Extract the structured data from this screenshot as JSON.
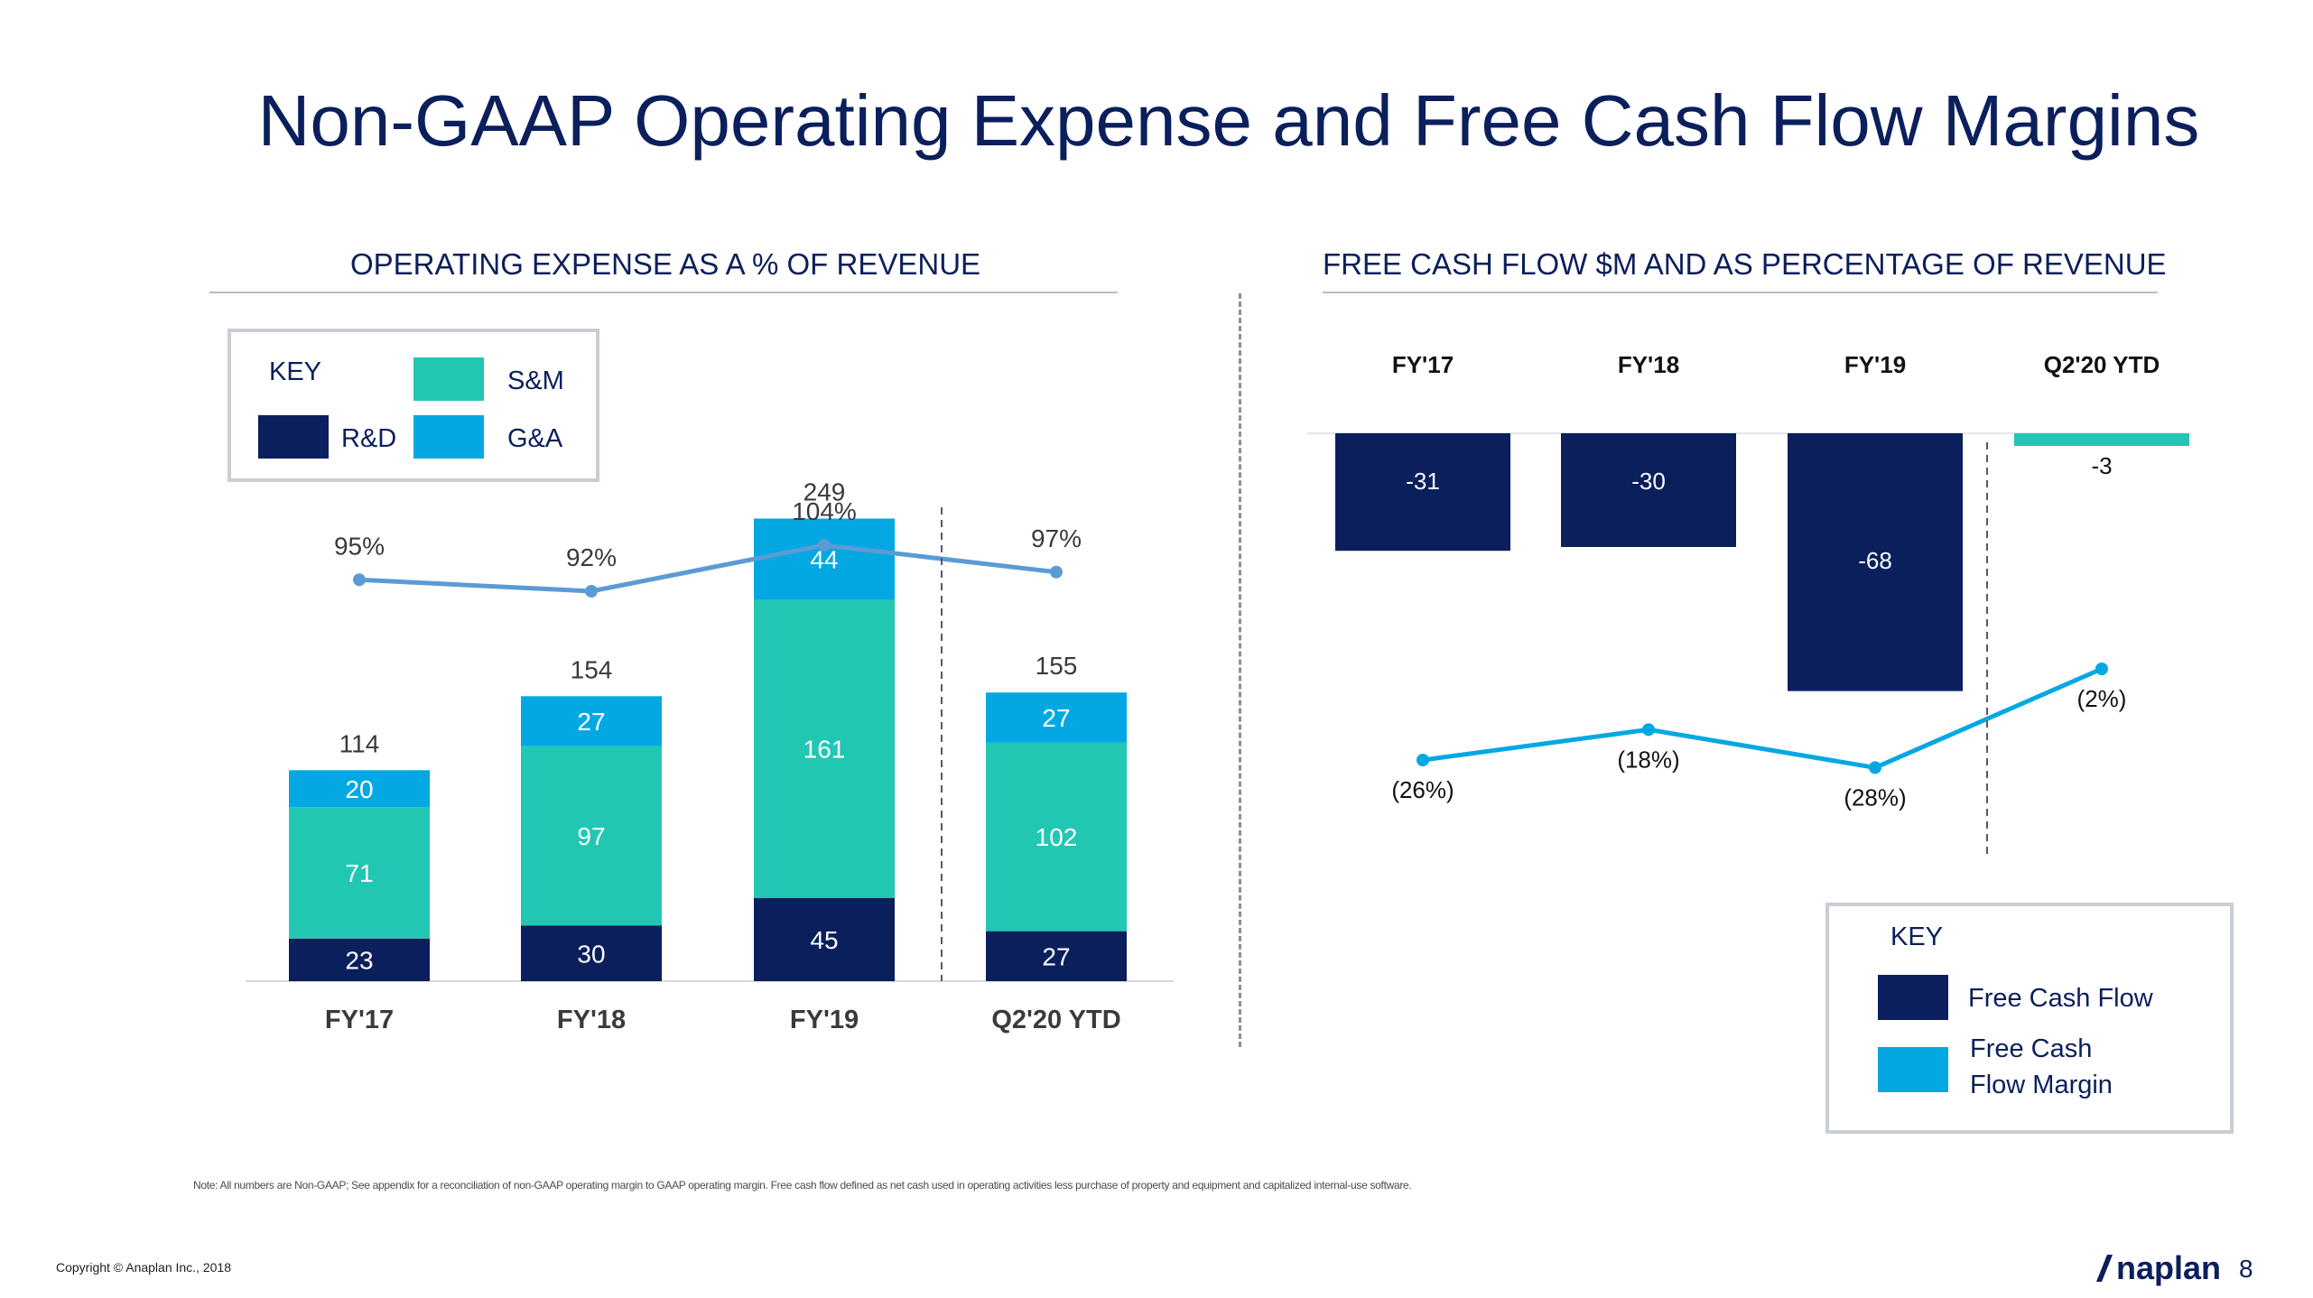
{
  "title": "Non-GAAP Operating Expense and Free Cash Flow Margins",
  "colors": {
    "navy": "#0b1f5c",
    "teal": "#22c7b3",
    "sky": "#03a8e2",
    "line_blue": "#5b9bd5",
    "fcf_line": "#03a8e2",
    "gray": "#b7bcc6"
  },
  "left_key": {
    "title": "KEY",
    "items": [
      {
        "label": "S&M",
        "color": "#22c7b3"
      },
      {
        "label": "R&D",
        "color": "#0b1f5c"
      },
      {
        "label": "G&A",
        "color": "#03a8e2"
      }
    ]
  },
  "right_key": {
    "title": "KEY",
    "items": [
      {
        "label": "Free Cash Flow",
        "color": "#0b1f5c"
      },
      {
        "label_line1": "Free Cash",
        "label_line2": "Flow Margin",
        "color": "#03a8e2"
      }
    ]
  },
  "chart_data": [
    {
      "type": "bar",
      "subtype": "stacked-bar-with-line",
      "title": "OPERATING EXPENSE AS A  % OF REVENUE",
      "categories": [
        "FY'17",
        "FY'18",
        "FY'19",
        "Q2'20 YTD"
      ],
      "series": [
        {
          "name": "R&D",
          "values": [
            23,
            30,
            45,
            27
          ],
          "labels": [
            "23",
            "30",
            "45",
            "27"
          ]
        },
        {
          "name": "S&M",
          "values": [
            71,
            97,
            161,
            102
          ],
          "labels": [
            "71",
            "97",
            "161",
            "102"
          ]
        },
        {
          "name": "G&A",
          "values": [
            20,
            27,
            44,
            27
          ],
          "labels": [
            "20",
            "27",
            "44",
            "27"
          ]
        }
      ],
      "totals": [
        114,
        154,
        249,
        155
      ],
      "total_labels": [
        "114",
        "154",
        "249",
        "155"
      ],
      "line": {
        "name": "Operating expense as % of revenue",
        "values": [
          95,
          92,
          104,
          97
        ],
        "labels": [
          "95%",
          "92%",
          "104%",
          "97%"
        ],
        "ylim": [
          60,
          140
        ]
      },
      "ylim": [
        0,
        250
      ],
      "divider_before": "Q2'20 YTD"
    },
    {
      "type": "bar",
      "subtype": "negative-bar-with-line",
      "title": "FREE CASH FLOW $M AND AS PERCENTAGE OF REVENUE",
      "categories": [
        "FY'17",
        "FY'18",
        "FY'19",
        "Q2'20 YTD"
      ],
      "series": [
        {
          "name": "Free Cash Flow",
          "values": [
            -31,
            -30,
            -68,
            -3
          ],
          "labels": [
            "-31",
            "-30",
            "-68",
            "-3"
          ]
        }
      ],
      "line": {
        "name": "Free Cash Flow Margin",
        "values": [
          -26,
          -18,
          -28,
          -2
        ],
        "labels": [
          "(26%)",
          "(18%)",
          "(28%)",
          "(2%)"
        ],
        "ylim": [
          -40,
          0
        ]
      },
      "ylim": [
        -70,
        0
      ],
      "divider_before": "Q2'20 YTD"
    }
  ],
  "footnote": "Note: All numbers are Non-GAAP; See appendix for a reconciliation of non-GAAP operating margin to GAAP operating margin.  Free cash flow defined as net cash used in operating activities less purchase of property and equipment and capitalized internal-use software.",
  "copyright": "Copyright © Anaplan Inc., 2018",
  "logo": "naplan",
  "page_number": "8"
}
